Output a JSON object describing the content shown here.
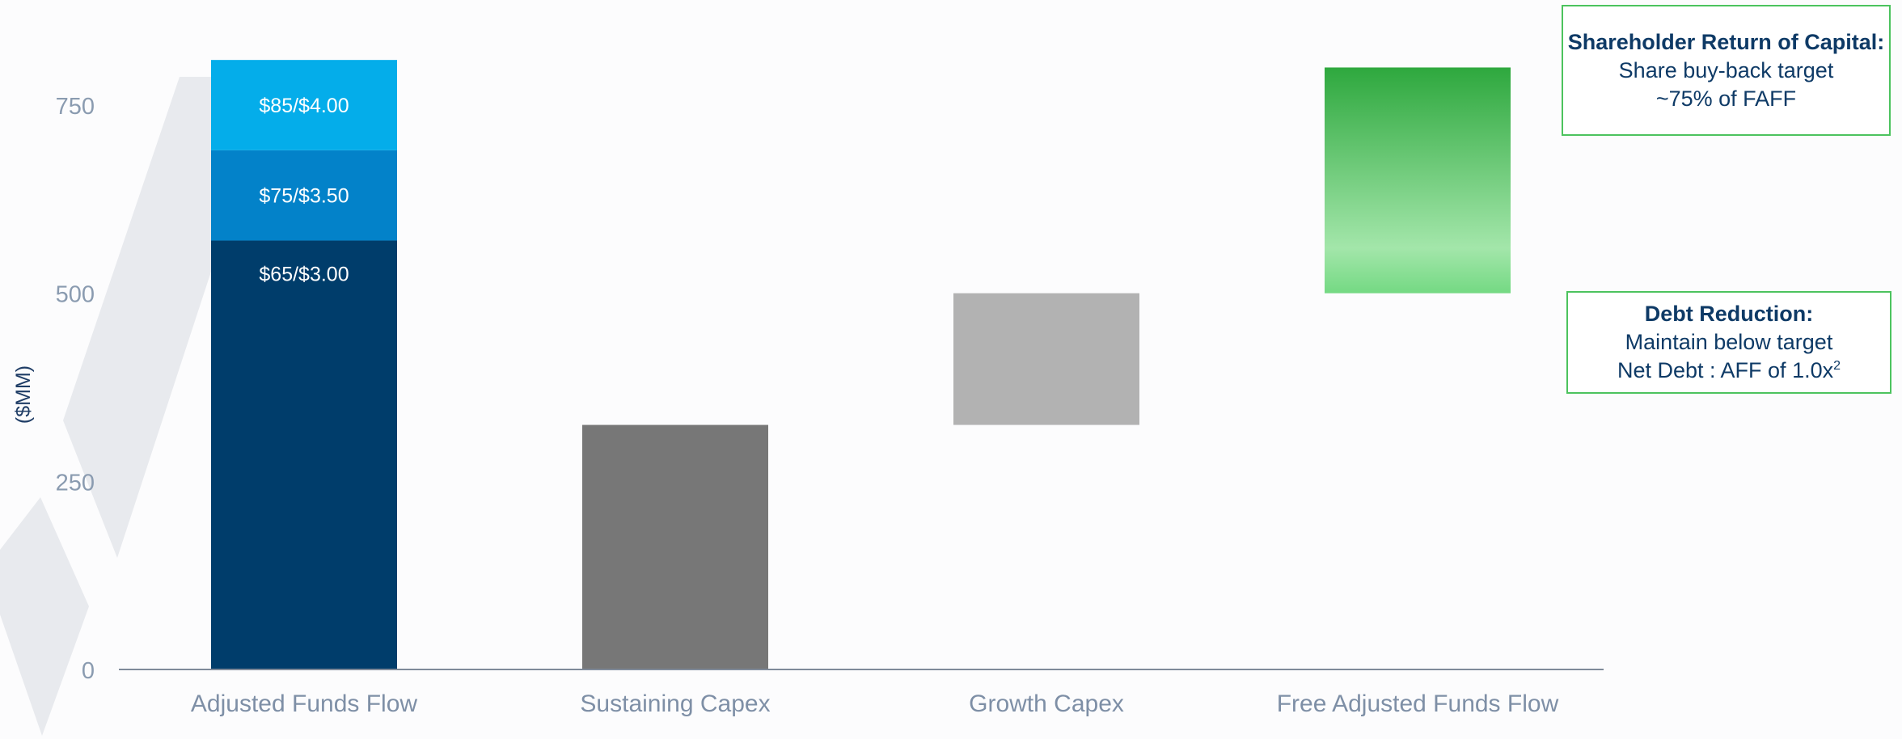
{
  "chart_data": {
    "type": "bar",
    "subtype": "waterfall",
    "ylabel": "($MM)",
    "ylim": [
      0,
      840
    ],
    "yticks": [
      0,
      250,
      500,
      750
    ],
    "categories": [
      "Adjusted Funds Flow",
      "Sustaining Capex",
      "Growth Capex",
      "Free Adjusted Funds Flow"
    ],
    "bars": [
      {
        "category": "Adjusted Funds Flow",
        "stacked_segments": [
          {
            "label": "$65/$3.00",
            "bottom": 0,
            "top": 570,
            "color": "#003d6b"
          },
          {
            "label": "$75/$3.50",
            "bottom": 570,
            "top": 690,
            "color": "#0382c9"
          },
          {
            "label": "$85/$4.00",
            "bottom": 690,
            "top": 810,
            "color": "#04adea"
          }
        ]
      },
      {
        "category": "Sustaining Capex",
        "bottom": 0,
        "top": 325,
        "color": "#777777"
      },
      {
        "category": "Growth Capex",
        "bottom": 325,
        "top": 500,
        "color": "#b2b2b2"
      },
      {
        "category": "Free Adjusted Funds Flow",
        "bottom": 500,
        "top": 800,
        "color_top": "#2ea83e",
        "color_bottom": "#7edf8a"
      }
    ],
    "grid": false,
    "legend": "none"
  },
  "callouts": {
    "return": {
      "title": "Shareholder Return of Capital:",
      "line1": "Share buy-back target",
      "line2": "~75% of FAFF"
    },
    "debt": {
      "title": "Debt Reduction:",
      "line1": "Maintain below target",
      "line2": "Net Debt : AFF of 1.0x",
      "superscript": "2"
    }
  }
}
